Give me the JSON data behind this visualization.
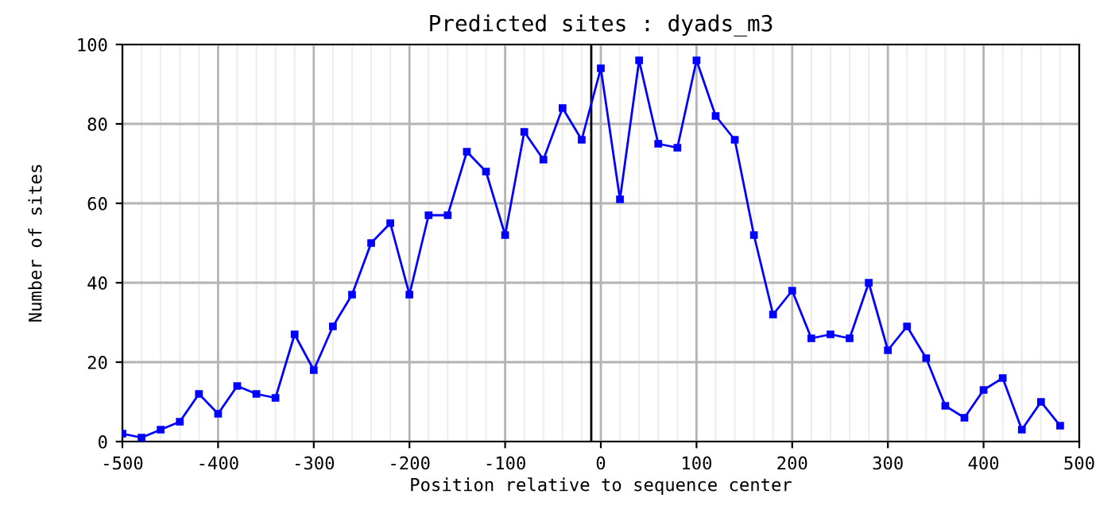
{
  "chart_data": {
    "type": "line",
    "title": "Predicted sites : dyads_m3",
    "xlabel": "Position relative to sequence center",
    "ylabel": "Number of sites",
    "x": [
      -500,
      -480,
      -460,
      -440,
      -420,
      -400,
      -380,
      -360,
      -340,
      -320,
      -300,
      -280,
      -260,
      -240,
      -220,
      -200,
      -180,
      -160,
      -140,
      -120,
      -100,
      -80,
      -60,
      -40,
      -20,
      0,
      20,
      40,
      60,
      80,
      100,
      120,
      140,
      160,
      180,
      200,
      220,
      240,
      260,
      280,
      300,
      320,
      340,
      360,
      380,
      400,
      420,
      440,
      460,
      480
    ],
    "series": [
      {
        "color": "#0000ff",
        "values": [
          2,
          1,
          3,
          5,
          12,
          7,
          14,
          12,
          11,
          27,
          18,
          29,
          37,
          50,
          55,
          37,
          57,
          57,
          73,
          68,
          52,
          78,
          71,
          84,
          76,
          94,
          61,
          96,
          75,
          74,
          96,
          82,
          76,
          52,
          32,
          38,
          26,
          27,
          26,
          40,
          23,
          29,
          21,
          9,
          6,
          13,
          16,
          3,
          10,
          4
        ]
      }
    ],
    "xlim": [
      -500,
      500
    ],
    "ylim": [
      0,
      100
    ],
    "xticks": [
      -500,
      -400,
      -300,
      -200,
      -100,
      0,
      100,
      200,
      300,
      400,
      500
    ],
    "yticks": [
      0,
      20,
      40,
      60,
      80,
      100
    ],
    "ref_lines": [
      {
        "axis": "x",
        "value": -10,
        "color": "#000000"
      }
    ],
    "grid": true,
    "marker": "square",
    "line_style": "solid"
  }
}
